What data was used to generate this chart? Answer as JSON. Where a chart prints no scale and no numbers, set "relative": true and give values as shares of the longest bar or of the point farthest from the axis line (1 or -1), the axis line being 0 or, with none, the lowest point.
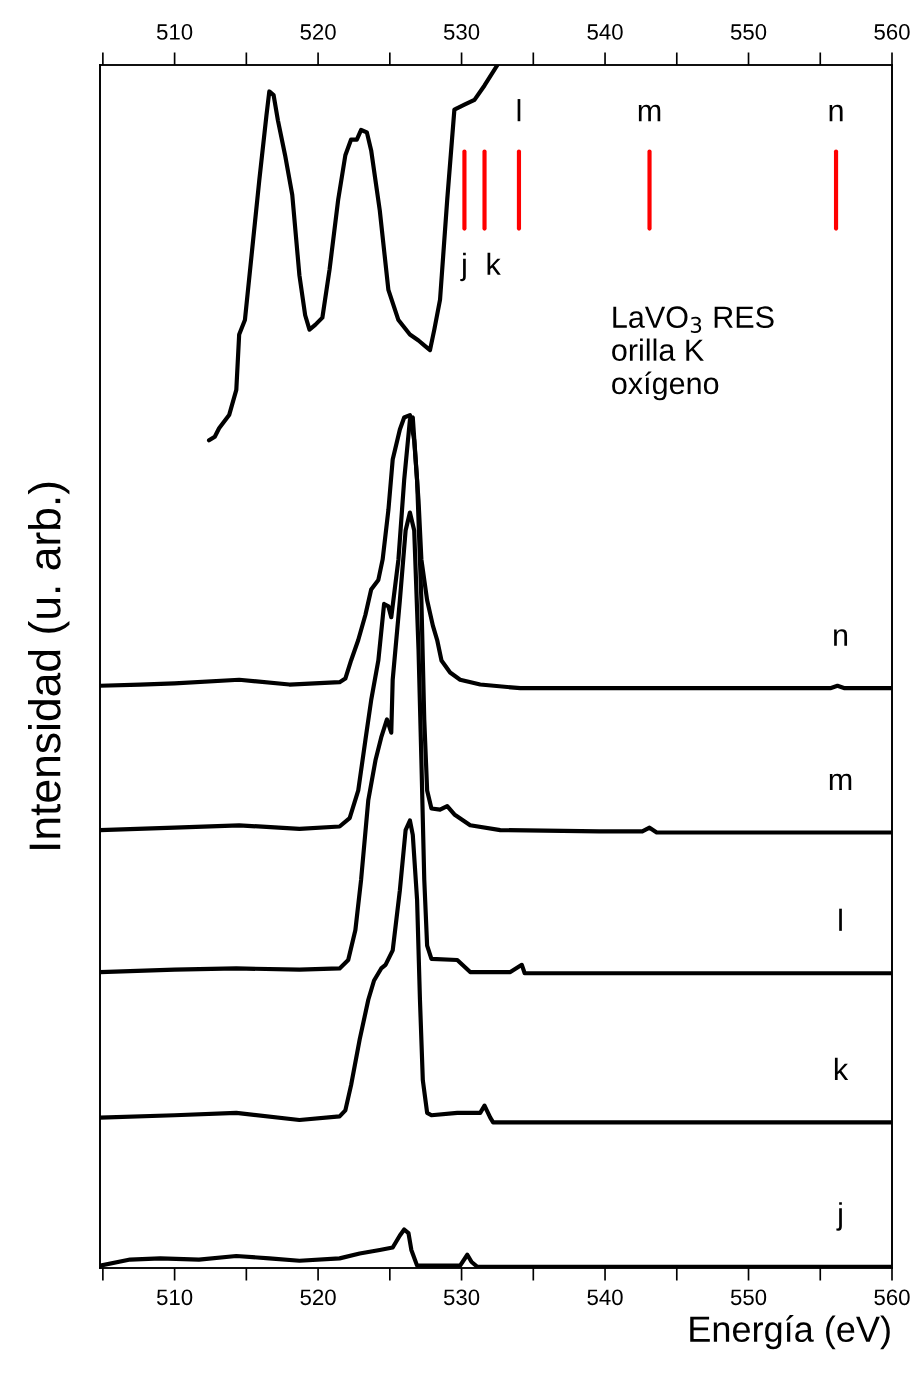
{
  "chart_data": {
    "type": "line",
    "relative": true,
    "xlabel": "Energía (eV)",
    "ylabel": "Intensidad (u. arb.)",
    "xlim": [
      504.8,
      560
    ],
    "xticks": [
      {
        "value": 505,
        "label": null
      },
      510,
      {
        "value": 515,
        "label": null
      },
      520,
      {
        "value": 525,
        "label": null
      },
      530,
      {
        "value": 535,
        "label": null
      },
      540,
      {
        "value": 545,
        "label": null
      },
      550,
      {
        "value": 555,
        "label": null
      },
      560
    ],
    "x2lim": [
      504.8,
      560
    ],
    "x2ticks": [
      {
        "value": 505,
        "label": null
      },
      510,
      {
        "value": 515,
        "label": null
      },
      520,
      {
        "value": 525,
        "label": null
      },
      530,
      {
        "value": 535,
        "label": null
      },
      540,
      {
        "value": 545,
        "label": null
      },
      550,
      {
        "value": 555,
        "label": null
      },
      560
    ],
    "tick_labels": "x",
    "line_style": "solid",
    "marker": "none",
    "series": [
      {
        "color": "#000000",
        "x": [
          512.4,
          512.8,
          513.1,
          513.8,
          514.3,
          514.5,
          514.9,
          515.4,
          515.9,
          516.4,
          516.6,
          516.9,
          517.2,
          517.7,
          518.2,
          518.7,
          519.1,
          519.4,
          519.8,
          520.3,
          520.8,
          521.4,
          521.9,
          522.3,
          522.7,
          523.0,
          523.4,
          523.7,
          524.3,
          524.9,
          525.6,
          526.4,
          527.0,
          527.4,
          527.8,
          528.1,
          528.5,
          529.0,
          529.5,
          530.2,
          530.9,
          531.6,
          532.5
        ],
        "values": [
          0.688,
          0.691,
          0.698,
          0.709,
          0.73,
          0.776,
          0.788,
          0.846,
          0.904,
          0.958,
          0.978,
          0.975,
          0.954,
          0.925,
          0.892,
          0.825,
          0.792,
          0.78,
          0.784,
          0.79,
          0.83,
          0.888,
          0.925,
          0.938,
          0.938,
          0.946,
          0.944,
          0.929,
          0.879,
          0.813,
          0.788,
          0.776,
          0.771,
          0.767,
          0.763,
          0.78,
          0.805,
          0.888,
          0.963,
          0.967,
          0.971,
          0.983,
          1.0
        ]
      },
      {
        "name": "n",
        "color": "#000000",
        "x": [
          504.8,
          507.6,
          510.0,
          514.5,
          518.0,
          521.5,
          521.9,
          522.3,
          522.8,
          523.3,
          523.7,
          524.2,
          524.5,
          524.9,
          525.2,
          525.7,
          526.0,
          526.4,
          526.7,
          527.0,
          527.2,
          527.6,
          528.0,
          528.3,
          528.6,
          529.2,
          529.9,
          531.3,
          534.1,
          539.6,
          546.6,
          555.7,
          556.2,
          556.7,
          560.0
        ],
        "values": [
          0.484,
          0.485,
          0.486,
          0.489,
          0.485,
          0.487,
          0.49,
          0.505,
          0.522,
          0.543,
          0.564,
          0.572,
          0.589,
          0.63,
          0.672,
          0.697,
          0.707,
          0.709,
          0.688,
          0.638,
          0.589,
          0.555,
          0.534,
          0.522,
          0.505,
          0.495,
          0.489,
          0.485,
          0.482,
          0.482,
          0.482,
          0.482,
          0.484,
          0.482,
          0.482
        ]
      },
      {
        "name": "m",
        "color": "#000000",
        "x": [
          504.8,
          510.0,
          514.5,
          518.7,
          521.5,
          522.2,
          522.8,
          523.3,
          523.7,
          524.2,
          524.6,
          524.9,
          525.1,
          525.6,
          526.0,
          526.4,
          526.6,
          526.9,
          527.2,
          527.4,
          527.6,
          527.9,
          528.5,
          529.0,
          529.5,
          530.6,
          532.7,
          539.6,
          542.6,
          543.1,
          543.6,
          560.0
        ],
        "values": [
          0.364,
          0.366,
          0.368,
          0.365,
          0.367,
          0.374,
          0.397,
          0.439,
          0.472,
          0.505,
          0.552,
          0.55,
          0.541,
          0.589,
          0.655,
          0.705,
          0.707,
          0.655,
          0.555,
          0.456,
          0.397,
          0.382,
          0.381,
          0.384,
          0.377,
          0.368,
          0.364,
          0.363,
          0.363,
          0.366,
          0.362,
          0.362
        ]
      },
      {
        "name": "l",
        "color": "#000000",
        "x": [
          504.8,
          510.0,
          514.3,
          518.7,
          521.5,
          522.1,
          522.6,
          523.0,
          523.5,
          524.0,
          524.4,
          524.8,
          525.1,
          525.2,
          525.7,
          526.1,
          526.4,
          526.7,
          527.0,
          527.2,
          527.4,
          527.6,
          527.9,
          529.7,
          530.6,
          533.4,
          534.2,
          534.4,
          539.6,
          560.0
        ],
        "values": [
          0.246,
          0.248,
          0.249,
          0.248,
          0.249,
          0.256,
          0.281,
          0.323,
          0.389,
          0.422,
          0.441,
          0.456,
          0.445,
          0.489,
          0.555,
          0.613,
          0.628,
          0.613,
          0.514,
          0.422,
          0.323,
          0.268,
          0.257,
          0.256,
          0.246,
          0.246,
          0.252,
          0.245,
          0.245,
          0.245
        ]
      },
      {
        "name": "k",
        "color": "#000000",
        "x": [
          504.8,
          510.0,
          514.3,
          518.7,
          521.5,
          521.9,
          522.3,
          522.9,
          523.5,
          523.9,
          524.4,
          524.7,
          525.2,
          525.7,
          526.1,
          526.4,
          526.6,
          526.9,
          527.1,
          527.3,
          527.6,
          527.9,
          529.7,
          531.3,
          531.6,
          532.0,
          532.2,
          560.0
        ],
        "values": [
          0.125,
          0.127,
          0.129,
          0.123,
          0.126,
          0.131,
          0.152,
          0.19,
          0.223,
          0.239,
          0.249,
          0.252,
          0.264,
          0.314,
          0.364,
          0.372,
          0.36,
          0.306,
          0.223,
          0.156,
          0.129,
          0.127,
          0.129,
          0.129,
          0.135,
          0.125,
          0.121,
          0.121
        ]
      },
      {
        "name": "j",
        "color": "#000000",
        "x": [
          504.8,
          506.9,
          509.0,
          511.7,
          514.3,
          516.6,
          518.7,
          521.5,
          522.9,
          524.3,
          525.2,
          525.7,
          526.0,
          526.3,
          526.5,
          526.9,
          527.8,
          529.9,
          530.4,
          530.7,
          531.1,
          560.0
        ],
        "values": [
          0.002,
          0.007,
          0.008,
          0.007,
          0.01,
          0.008,
          0.006,
          0.008,
          0.012,
          0.015,
          0.017,
          0.027,
          0.032,
          0.029,
          0.015,
          0.002,
          0.002,
          0.002,
          0.011,
          0.005,
          0.001,
          0.001
        ]
      },
      {
        "name": "j",
        "color": "#ff0000",
        "x": [
          530.2,
          530.2
        ],
        "values": [
          0.864,
          0.928
        ]
      },
      {
        "name": "k",
        "color": "#ff0000",
        "x": [
          531.6,
          531.6
        ],
        "values": [
          0.864,
          0.928
        ]
      },
      {
        "name": "l",
        "color": "#ff0000",
        "x": [
          534.0,
          534.0
        ],
        "values": [
          0.864,
          0.928
        ]
      },
      {
        "name": "m",
        "color": "#ff0000",
        "x": [
          543.1,
          543.1
        ],
        "values": [
          0.864,
          0.928
        ]
      },
      {
        "name": "n",
        "color": "#ff0000",
        "x": [
          556.1,
          556.1
        ],
        "values": [
          0.864,
          0.928
        ]
      }
    ],
    "annotations": [
      "LaVO$_{3}$ RES\norilla K\noxígeno"
    ]
  }
}
